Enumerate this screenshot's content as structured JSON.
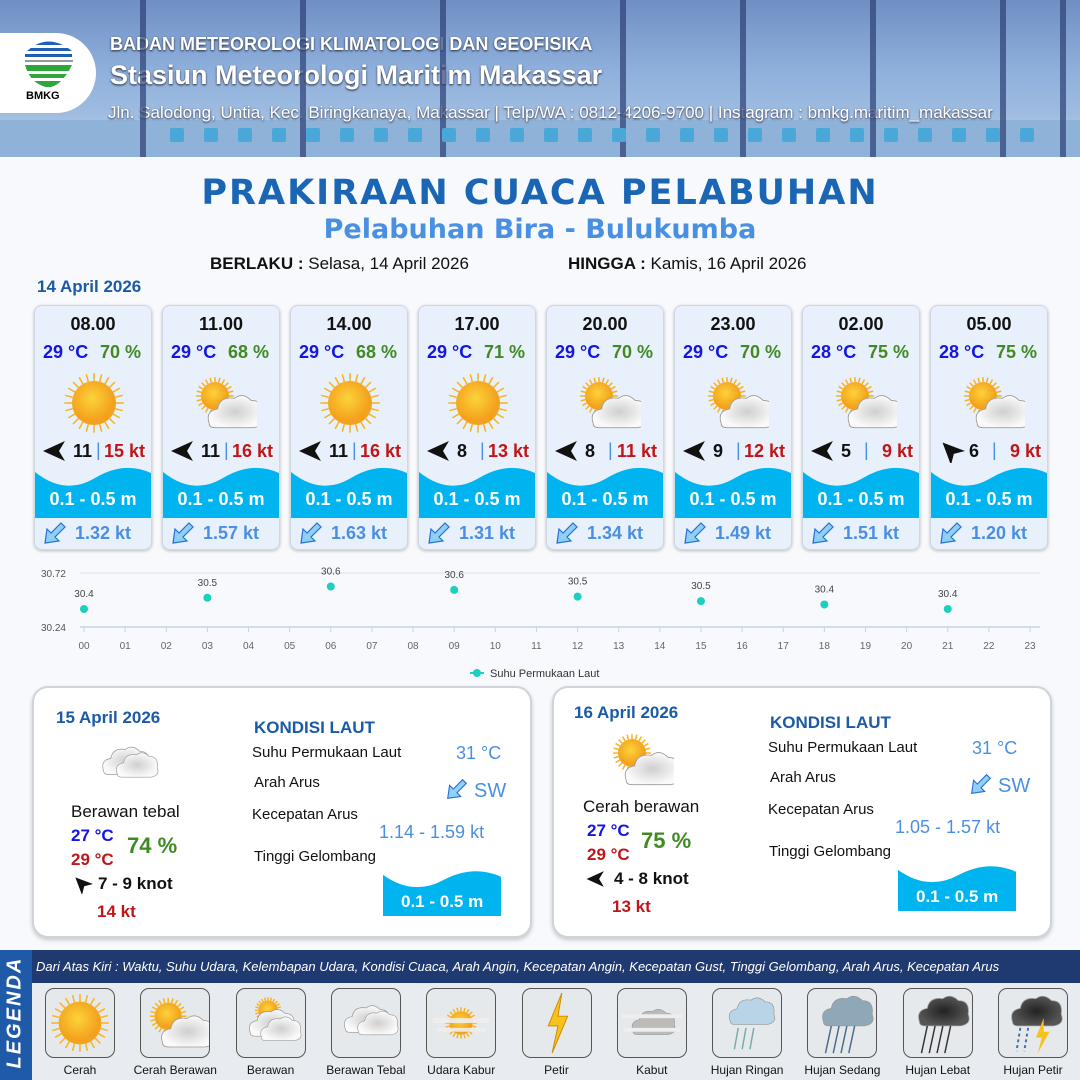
{
  "header": {
    "logo_text": "BMKG",
    "agency": "BADAN METEOROLOGI KLIMATOLOGI DAN GEOFISIKA",
    "station": "Stasiun Meteorologi Maritim Makassar",
    "contact": "Jln. Salodong, Untia, Kec. Biringkanaya, Makassar | Telp/WA : 0812-4206-9700 | Instagram : bmkg.maritim_makassar"
  },
  "title": "PRAKIRAAN CUACA PELABUHAN",
  "subtitle": "Pelabuhan Bira - Bulukumba",
  "validity": {
    "from_label": "BERLAKU :",
    "from": "Selasa, 14 April 2026",
    "to_label": "HINGGA :",
    "to": "Kamis, 16 April 2026"
  },
  "day1": {
    "date": "14 April 2026",
    "forecasts": [
      {
        "time": "08.00",
        "temp": "29 °C",
        "humidity": "70 %",
        "icon": "sun-icon",
        "wind_dir": "E",
        "wind": "11",
        "gust": "15 kt",
        "wave": "0.1 - 0.5 m",
        "current": "1.32 kt"
      },
      {
        "time": "11.00",
        "temp": "29 °C",
        "humidity": "68 %",
        "icon": "sun-cloud-icon",
        "wind_dir": "E",
        "wind": "11",
        "gust": "16 kt",
        "wave": "0.1 - 0.5 m",
        "current": "1.57 kt"
      },
      {
        "time": "14.00",
        "temp": "29 °C",
        "humidity": "68 %",
        "icon": "sun-icon",
        "wind_dir": "E",
        "wind": "11",
        "gust": "16 kt",
        "wave": "0.1 - 0.5 m",
        "current": "1.63 kt"
      },
      {
        "time": "17.00",
        "temp": "29 °C",
        "humidity": "71 %",
        "icon": "sun-icon",
        "wind_dir": "E",
        "wind": "8",
        "gust": "13 kt",
        "wave": "0.1 - 0.5 m",
        "current": "1.31 kt"
      },
      {
        "time": "20.00",
        "temp": "29 °C",
        "humidity": "70 %",
        "icon": "sun-cloud-icon",
        "wind_dir": "E",
        "wind": "8",
        "gust": "11 kt",
        "wave": "0.1 - 0.5 m",
        "current": "1.34 kt"
      },
      {
        "time": "23.00",
        "temp": "29 °C",
        "humidity": "70 %",
        "icon": "sun-cloud-icon",
        "wind_dir": "E",
        "wind": "9",
        "gust": "12 kt",
        "wave": "0.1 - 0.5 m",
        "current": "1.49 kt"
      },
      {
        "time": "02.00",
        "temp": "28 °C",
        "humidity": "75 %",
        "icon": "sun-cloud-icon",
        "wind_dir": "E",
        "wind": "5",
        "gust": "9 kt",
        "wave": "0.1 - 0.5 m",
        "current": "1.51 kt"
      },
      {
        "time": "05.00",
        "temp": "28 °C",
        "humidity": "75 %",
        "icon": "sun-cloud-icon",
        "wind_dir": "NW",
        "wind": "6",
        "gust": "9 kt",
        "wave": "0.1 - 0.5 m",
        "current": "1.20 kt"
      }
    ]
  },
  "chart_data": {
    "type": "scatter",
    "x": [
      "00",
      "03",
      "06",
      "09",
      "12",
      "15",
      "18",
      "21"
    ],
    "values": [
      30.4,
      30.5,
      30.6,
      30.57,
      30.51,
      30.47,
      30.44,
      30.4
    ],
    "data_labels": [
      "30.4",
      "30.5",
      "30.6",
      "30.6",
      "30.5",
      "30.5",
      "30.4",
      "30.4"
    ],
    "x_ticks": [
      "00",
      "01",
      "02",
      "03",
      "04",
      "05",
      "06",
      "07",
      "08",
      "09",
      "10",
      "11",
      "12",
      "13",
      "14",
      "15",
      "16",
      "17",
      "18",
      "19",
      "20",
      "21",
      "22",
      "23"
    ],
    "y_ticks": [
      "30.72",
      "30.24"
    ],
    "ylim": [
      30.24,
      30.72
    ],
    "series_name": "Suhu Permukaan Laut",
    "legend_position": "bottom",
    "color": "#1ccfc0",
    "grid": true
  },
  "days": [
    {
      "date": "15 April 2026",
      "condition": "Berawan tebal",
      "icon": "thick-cloud-icon",
      "temp_min": "27 °C",
      "temp_max": "29 °C",
      "humidity": "74 %",
      "wind_dir": "NW",
      "wind": "7  - 9 knot",
      "gust": "14 kt",
      "sea": {
        "heading": "KONDISI LAUT",
        "sst_label": "Suhu Permukaan Laut",
        "sst": "31 °C",
        "dir_label": "Arah Arus",
        "dir": "SW",
        "speed_label": "Kecepatan Arus",
        "speed": "1.14 - 1.59 kt",
        "wave_label": "Tinggi Gelombang",
        "wave": "0.1 - 0.5 m"
      }
    },
    {
      "date": "16 April 2026",
      "condition": "Cerah berawan",
      "icon": "sun-cloud-icon",
      "temp_min": "27 °C",
      "temp_max": "29 °C",
      "humidity": "75 %",
      "wind_dir": "E",
      "wind": "4  - 8 knot",
      "gust": "13 kt",
      "sea": {
        "heading": "KONDISI LAUT",
        "sst_label": "Suhu Permukaan Laut",
        "sst": "31 °C",
        "dir_label": "Arah Arus",
        "dir": "SW",
        "speed_label": "Kecepatan Arus",
        "speed": "1.05 - 1.57 kt",
        "wave_label": "Tinggi Gelombang",
        "wave": "0.1 - 0.5 m"
      }
    }
  ],
  "legend": {
    "title": "LEGENDA",
    "description": "Dari Atas Kiri : Waktu, Suhu Udara, Kelembapan Udara, Kondisi Cuaca, Arah Angin, Kecepatan Angin, Kecepatan Gust, Tinggi Gelombang, Arah Arus, Kecepatan Arus",
    "items": [
      {
        "name": "Cerah",
        "icon": "sun-icon"
      },
      {
        "name": "Cerah Berawan",
        "icon": "sun-cloud-icon"
      },
      {
        "name": "Berawan",
        "icon": "cloudy-icon"
      },
      {
        "name": "Berawan Tebal",
        "icon": "thick-cloud-icon"
      },
      {
        "name": "Udara Kabur",
        "icon": "haze-icon"
      },
      {
        "name": "Petir",
        "icon": "lightning-icon"
      },
      {
        "name": "Kabut",
        "icon": "fog-icon"
      },
      {
        "name": "Hujan Ringan",
        "icon": "light-rain-icon"
      },
      {
        "name": "Hujan Sedang",
        "icon": "moderate-rain-icon"
      },
      {
        "name": "Hujan Lebat",
        "icon": "heavy-rain-icon"
      },
      {
        "name": "Hujan Petir",
        "icon": "thunderstorm-icon"
      }
    ]
  },
  "colors": {
    "title": "#1a65b4",
    "temp": "#1414e6",
    "humidity": "#3f8a22",
    "gust": "#c0161a",
    "wave": "#00b4f0",
    "current": "#4a8fe0"
  }
}
